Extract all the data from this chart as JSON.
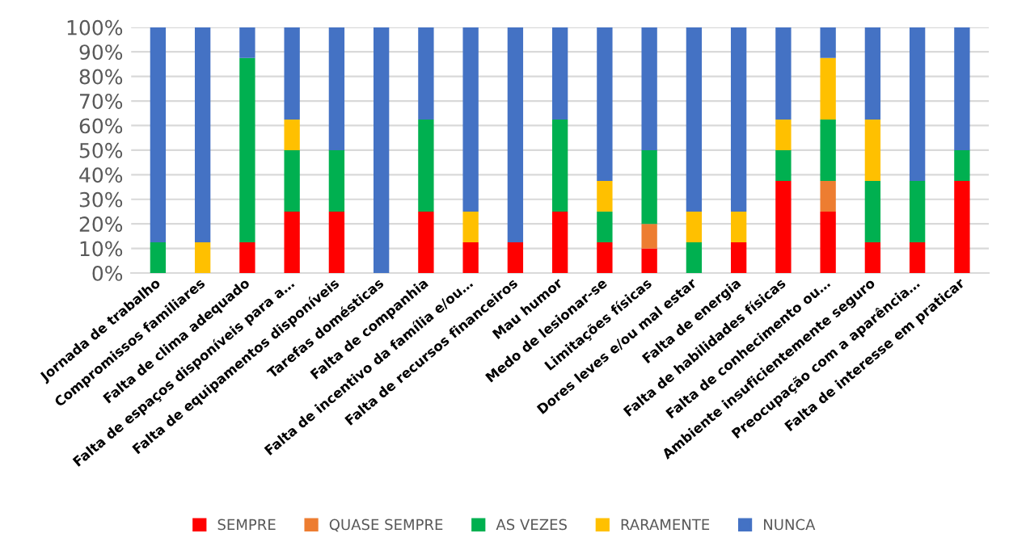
{
  "chart_data": {
    "type": "bar",
    "stacked": true,
    "categories": [
      "Jornada de trabalho",
      "Compromissos familiares",
      "Falta de clima adequado",
      "Falta de espaços disponíveis para a…",
      "Falta de equipamentos disponíveis",
      "Tarefas domésticas",
      "Falta de companhia",
      "Falta de incentivo da família e/ou…",
      "Falta de recursos financeiros",
      "Mau humor",
      "Medo de lesionar-se",
      "Limitações físicas",
      "Dores leves e/ou mal estar",
      "Falta de energia",
      "Falta de habilidades físicas",
      "Falta de conhecimento ou…",
      "Ambiente insuficientemente seguro",
      "Preocupação com a aparência…",
      "Falta de interesse em praticar"
    ],
    "series": [
      {
        "name": "SEMPRE",
        "color": "#ff0000",
        "values": [
          0,
          0,
          12.5,
          25,
          25,
          0,
          25,
          12.5,
          12.5,
          25,
          12.5,
          10,
          0,
          12.5,
          37.5,
          25,
          12.5,
          12.5,
          37.5
        ]
      },
      {
        "name": "QUASE SEMPRE",
        "color": "#ed7d31",
        "values": [
          0,
          0,
          0,
          0,
          0,
          0,
          0,
          0,
          0,
          0,
          0,
          10,
          0,
          0,
          0,
          12.5,
          0,
          0,
          0
        ]
      },
      {
        "name": "AS VEZES",
        "color": "#00b050",
        "values": [
          12.5,
          0,
          75,
          25,
          25,
          0,
          37.5,
          0,
          0,
          37.5,
          12.5,
          30,
          12.5,
          0,
          12.5,
          25,
          25,
          25,
          12.5
        ]
      },
      {
        "name": "RARAMENTE",
        "color": "#ffc000",
        "values": [
          0,
          12.5,
          0,
          12.5,
          0,
          0,
          0,
          12.5,
          0,
          0,
          12.5,
          0,
          12.5,
          12.5,
          12.5,
          25,
          25,
          0,
          0
        ]
      },
      {
        "name": "NUNCA",
        "color": "#4472c4",
        "values": [
          87.5,
          87.5,
          12.5,
          37.5,
          50,
          100,
          37.5,
          75,
          87.5,
          37.5,
          62.5,
          50,
          75,
          75,
          37.5,
          12.5,
          37.5,
          62.5,
          50
        ]
      }
    ],
    "ylim": [
      0,
      100
    ],
    "yticks": [
      {
        "value": 0,
        "label": "0%"
      },
      {
        "value": 10,
        "label": "10%"
      },
      {
        "value": 20,
        "label": "20%"
      },
      {
        "value": 30,
        "label": "30%"
      },
      {
        "value": 40,
        "label": "40%"
      },
      {
        "value": 50,
        "label": "50%"
      },
      {
        "value": 60,
        "label": "60%"
      },
      {
        "value": 70,
        "label": "70%"
      },
      {
        "value": 80,
        "label": "80%"
      },
      {
        "value": 90,
        "label": "90%"
      },
      {
        "value": 100,
        "label": "100%"
      }
    ],
    "grid": "y",
    "legend": "bottom"
  }
}
